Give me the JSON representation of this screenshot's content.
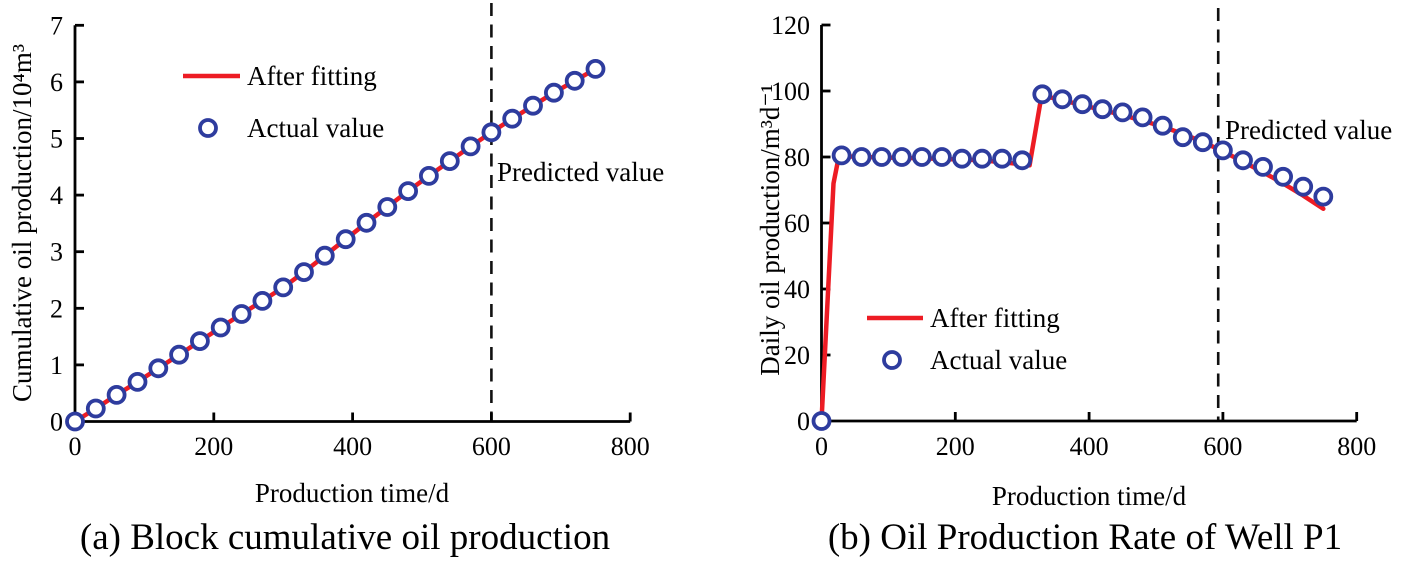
{
  "figure": {
    "background": "#ffffff",
    "colors": {
      "fit_line": "#ed1c24",
      "actual_marker": "#2e3c9e",
      "axis": "#000000",
      "dashed_line": "#111111",
      "text": "#000000"
    }
  },
  "chart_data": [
    {
      "id": "a",
      "type": "line",
      "title": "(a) Block cumulative oil production",
      "xlabel": "Production time/d",
      "ylabel": "Cumulative oil production/10⁴m³",
      "xlim": [
        0,
        800
      ],
      "ylim": [
        0,
        7
      ],
      "x_ticks": [
        0,
        200,
        400,
        600,
        800
      ],
      "y_ticks": [
        0,
        1,
        2,
        3,
        4,
        5,
        6,
        7
      ],
      "grid": false,
      "legend_position": "upper-left-inside",
      "legend": [
        {
          "name": "After fitting",
          "style": "line",
          "color": "#ed1c24"
        },
        {
          "name": "Actual value",
          "style": "open-circle",
          "color": "#2e3c9e"
        }
      ],
      "annotation": {
        "text": "Predicted value",
        "at_x": 600
      },
      "dashed_vline_x": 600,
      "series": [
        {
          "name": "After fitting",
          "type": "line",
          "points": [
            [
              0,
              0
            ],
            [
              30,
              0.23
            ],
            [
              60,
              0.47
            ],
            [
              90,
              0.7
            ],
            [
              120,
              0.94
            ],
            [
              150,
              1.18
            ],
            [
              180,
              1.42
            ],
            [
              210,
              1.66
            ],
            [
              240,
              1.9
            ],
            [
              270,
              2.13
            ],
            [
              300,
              2.37
            ],
            [
              330,
              2.64
            ],
            [
              360,
              2.93
            ],
            [
              390,
              3.22
            ],
            [
              420,
              3.51
            ],
            [
              450,
              3.79
            ],
            [
              480,
              4.07
            ],
            [
              510,
              4.34
            ],
            [
              540,
              4.6
            ],
            [
              570,
              4.86
            ],
            [
              600,
              5.11
            ],
            [
              630,
              5.35
            ],
            [
              660,
              5.58
            ],
            [
              690,
              5.81
            ],
            [
              720,
              6.02
            ],
            [
              750,
              6.23
            ]
          ]
        },
        {
          "name": "Actual value",
          "type": "scatter",
          "x": [
            0,
            30,
            60,
            90,
            120,
            150,
            180,
            210,
            240,
            270,
            300,
            330,
            360,
            390,
            420,
            450,
            480,
            510,
            540,
            570,
            600,
            630,
            660,
            690,
            720,
            750
          ],
          "y": [
            0,
            0.23,
            0.47,
            0.7,
            0.94,
            1.18,
            1.42,
            1.66,
            1.9,
            2.13,
            2.37,
            2.64,
            2.93,
            3.22,
            3.51,
            3.79,
            4.07,
            4.34,
            4.6,
            4.86,
            5.11,
            5.35,
            5.58,
            5.81,
            6.02,
            6.23
          ]
        }
      ]
    },
    {
      "id": "b",
      "type": "line",
      "title": "(b) Oil Production Rate of Well P1",
      "xlabel": "Production time/d",
      "ylabel": "Daily oil production/m³d⁻¹",
      "xlim": [
        0,
        800
      ],
      "ylim": [
        0,
        120
      ],
      "x_ticks": [
        0,
        200,
        400,
        600,
        800
      ],
      "y_ticks": [
        0,
        20,
        40,
        60,
        80,
        100,
        120
      ],
      "grid": false,
      "legend_position": "lower-left-inside",
      "legend": [
        {
          "name": "After fitting",
          "style": "line",
          "color": "#ed1c24"
        },
        {
          "name": "Actual value",
          "style": "open-circle",
          "color": "#2e3c9e"
        }
      ],
      "annotation": {
        "text": "Predicted value",
        "at_x": 600
      },
      "dashed_vline_x": 593,
      "series": [
        {
          "name": "After fitting",
          "type": "line",
          "points": [
            [
              0,
              0
            ],
            [
              18,
              72
            ],
            [
              26,
              80.3
            ],
            [
              60,
              80
            ],
            [
              150,
              79.6
            ],
            [
              240,
              79
            ],
            [
              300,
              77.8
            ],
            [
              311,
              77.5
            ],
            [
              329,
              98.7
            ],
            [
              360,
              97.2
            ],
            [
              390,
              95.7
            ],
            [
              420,
              94.2
            ],
            [
              450,
              92.7
            ],
            [
              480,
              91
            ],
            [
              510,
              89.2
            ],
            [
              540,
              87
            ],
            [
              570,
              84.6
            ],
            [
              600,
              81.7
            ],
            [
              630,
              78.6
            ],
            [
              660,
              75.4
            ],
            [
              690,
              72
            ],
            [
              720,
              68.3
            ],
            [
              750,
              64.3
            ]
          ]
        },
        {
          "name": "Actual value",
          "type": "scatter",
          "x": [
            0,
            30,
            60,
            90,
            120,
            150,
            180,
            210,
            240,
            270,
            300,
            330,
            360,
            390,
            420,
            450,
            480,
            510,
            540,
            570,
            600,
            630,
            660,
            690,
            720,
            750
          ],
          "y": [
            0,
            80.5,
            80,
            80,
            80,
            80,
            80,
            79.5,
            79.5,
            79.5,
            79,
            99,
            97.5,
            96,
            94.5,
            93.5,
            92,
            89.5,
            86,
            84.5,
            82,
            79,
            77,
            74,
            71,
            68
          ]
        }
      ]
    }
  ]
}
